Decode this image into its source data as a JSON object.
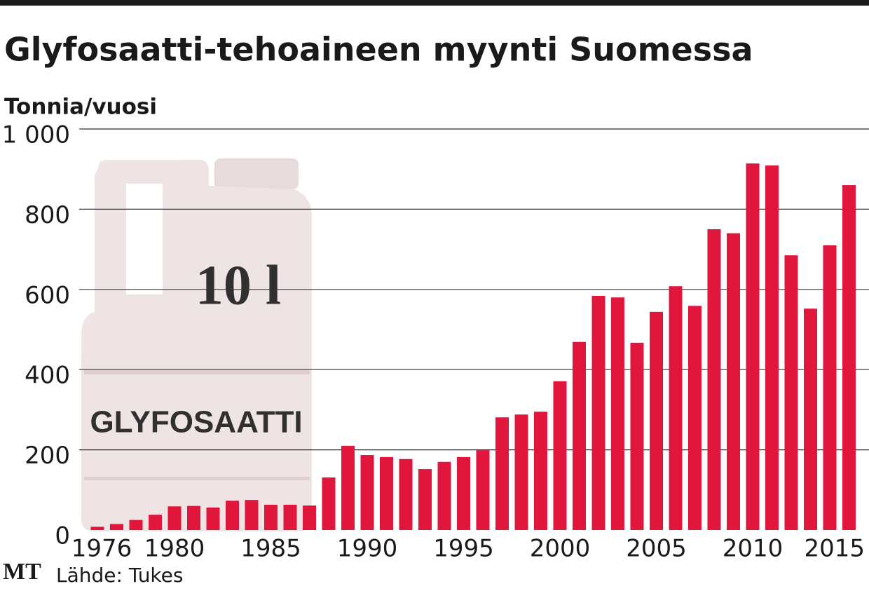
{
  "chart_data": {
    "type": "bar",
    "title": "Glyfosaatti-tehoaineen myynti Suomessa",
    "y_label": "Tonnia/vuosi",
    "source": "Lähde: Tukes",
    "logo": "MT",
    "annotations": [
      "10 l",
      "GLYFOSAATTI"
    ],
    "color": "#e0163c",
    "grid": true,
    "categories": [
      "1976",
      null,
      null,
      null,
      "1980",
      null,
      null,
      null,
      null,
      "1985",
      null,
      null,
      null,
      null,
      "1990",
      null,
      null,
      null,
      null,
      "1995",
      null,
      null,
      null,
      null,
      "2000",
      null,
      null,
      null,
      null,
      "2005",
      null,
      null,
      null,
      null,
      "2010",
      null,
      null,
      null,
      null,
      "2015"
    ],
    "values": [
      8,
      15,
      25,
      38,
      59,
      60,
      56,
      73,
      75,
      63,
      63,
      61,
      131,
      210,
      187,
      182,
      177,
      152,
      170,
      182,
      199,
      281,
      288,
      295,
      371,
      469,
      584,
      580,
      467,
      544,
      608,
      559,
      750,
      740,
      914,
      909,
      685,
      552,
      710,
      860
    ],
    "ylim": [
      0,
      1000
    ],
    "yticks": [
      0,
      200,
      400,
      600,
      800,
      {
        "value": 1000,
        "label": "1 000"
      }
    ]
  }
}
